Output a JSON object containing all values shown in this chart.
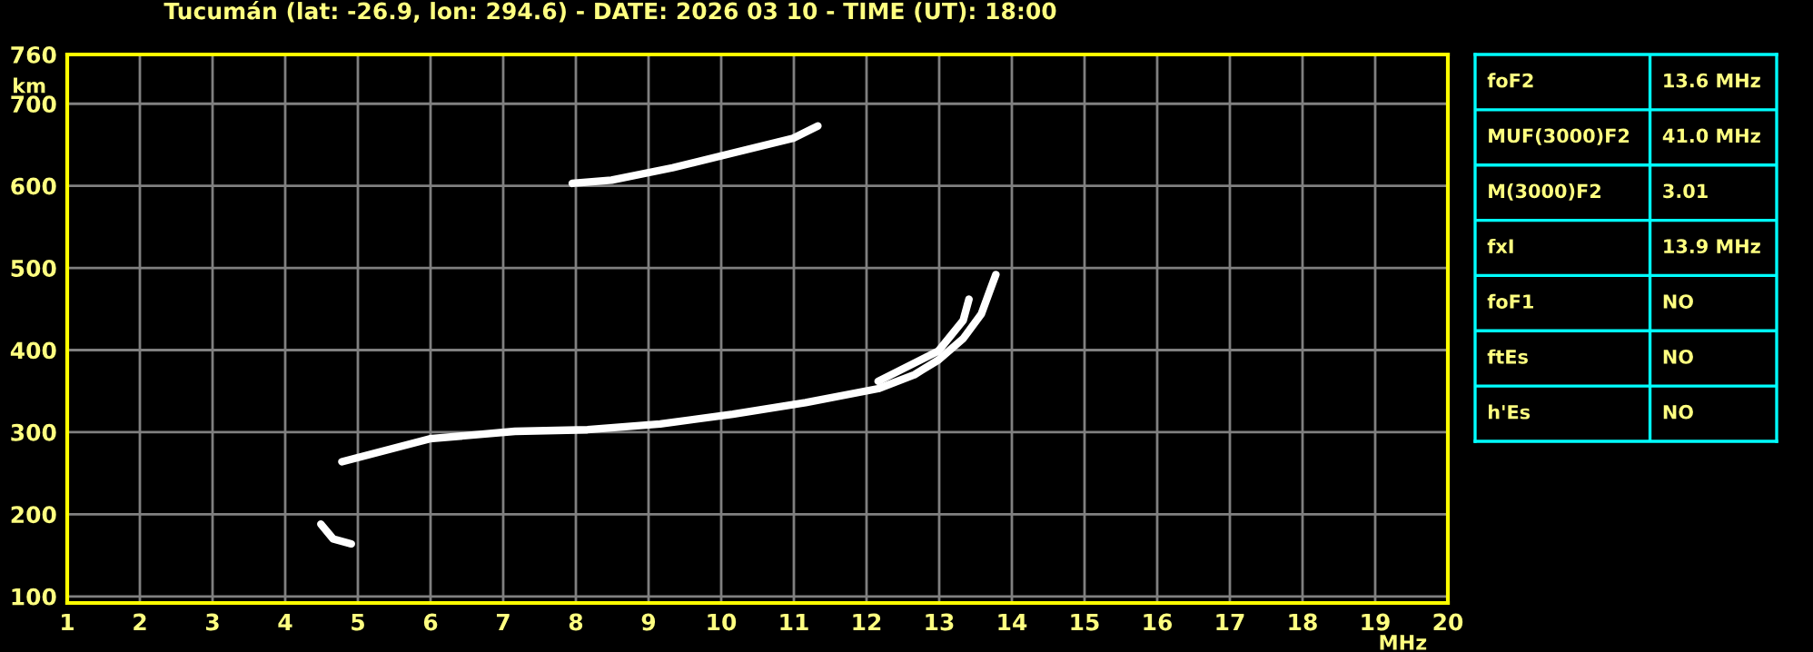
{
  "chart_data": [
    {
      "type": "line",
      "title": "Tucumán (lat: -26.9, lon: 294.6) - DATE: 2026 03 10 - TIME (UT): 18:00",
      "xlabel": "MHz",
      "ylabel": "km",
      "xlim": [
        1,
        20
      ],
      "ylim": [
        92,
        760
      ],
      "xticks": [
        1,
        2,
        3,
        4,
        5,
        6,
        7,
        8,
        9,
        10,
        11,
        12,
        13,
        14,
        15,
        16,
        17,
        18,
        19,
        20
      ],
      "yticks": [
        100,
        200,
        300,
        400,
        500,
        600,
        700,
        760
      ],
      "grid": true,
      "legend": false,
      "marker": "none",
      "line_style": "solid",
      "series": [
        {
          "color": "#ffffff",
          "x": [
            4.78,
            5.99,
            7.16,
            8.16,
            9.16,
            10.16,
            11.16,
            12.16,
            12.66,
            12.99,
            13.33,
            13.58,
            13.7,
            13.78
          ],
          "values": [
            264,
            292,
            301,
            303,
            310,
            322,
            336,
            353,
            370,
            388,
            414,
            444,
            473,
            492
          ]
        },
        {
          "color": "#ffffff",
          "x": [
            12.16,
            12.99,
            13.33,
            13.41
          ],
          "values": [
            362,
            399,
            436,
            462
          ]
        },
        {
          "color": "#ffffff",
          "x": [
            4.49,
            4.66,
            4.91
          ],
          "values": [
            188,
            170,
            164
          ]
        },
        {
          "color": "#ffffff",
          "x": [
            7.95,
            8.49,
            9.33,
            10.16,
            10.99,
            11.33
          ],
          "values": [
            603,
            607,
            622,
            640,
            658,
            673
          ]
        }
      ]
    },
    {
      "type": "other",
      "annotations": [
        "foF2",
        "13.6 MHz",
        "MUF(3000)F2",
        "41.0 MHz",
        "M(3000)F2",
        "3.01",
        "fxI",
        "13.9 MHz",
        "foF1",
        "NO",
        "ftEs",
        "NO",
        "h'Es",
        "NO"
      ]
    }
  ]
}
